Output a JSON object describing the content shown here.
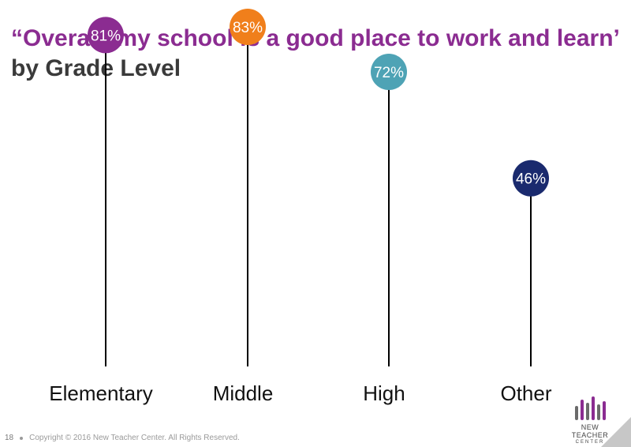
{
  "title": {
    "quoted": "“Overall, my school is a good place to work and learn’",
    "rest": " by Grade Level"
  },
  "chart_data": {
    "type": "lollipop",
    "categories": [
      "Elementary",
      "Middle",
      "High",
      "Other"
    ],
    "values": [
      81,
      83,
      72,
      46
    ],
    "data_labels": [
      "81%",
      "83%",
      "72%",
      "46%"
    ],
    "colors": [
      "#8b2c91",
      "#f07f1b",
      "#4ea3b5",
      "#1a2a6e"
    ],
    "title": "“Overall, my school is a good place to work and learn’ by Grade Level",
    "xlabel": "",
    "ylabel": "",
    "ylim": [
      0,
      100
    ],
    "grid": false,
    "legend": "none"
  },
  "footer": {
    "page_number": "18",
    "copyright": "Copyright © 2016 New Teacher Center. All Rights Reserved."
  },
  "logo": {
    "line1": "NEW TEACHER",
    "line2": "CENTER",
    "colors": [
      "#6b6b6b",
      "#8b2c91",
      "#6b6b6b",
      "#8b2c91",
      "#6b6b6b",
      "#8b2c91"
    ]
  }
}
